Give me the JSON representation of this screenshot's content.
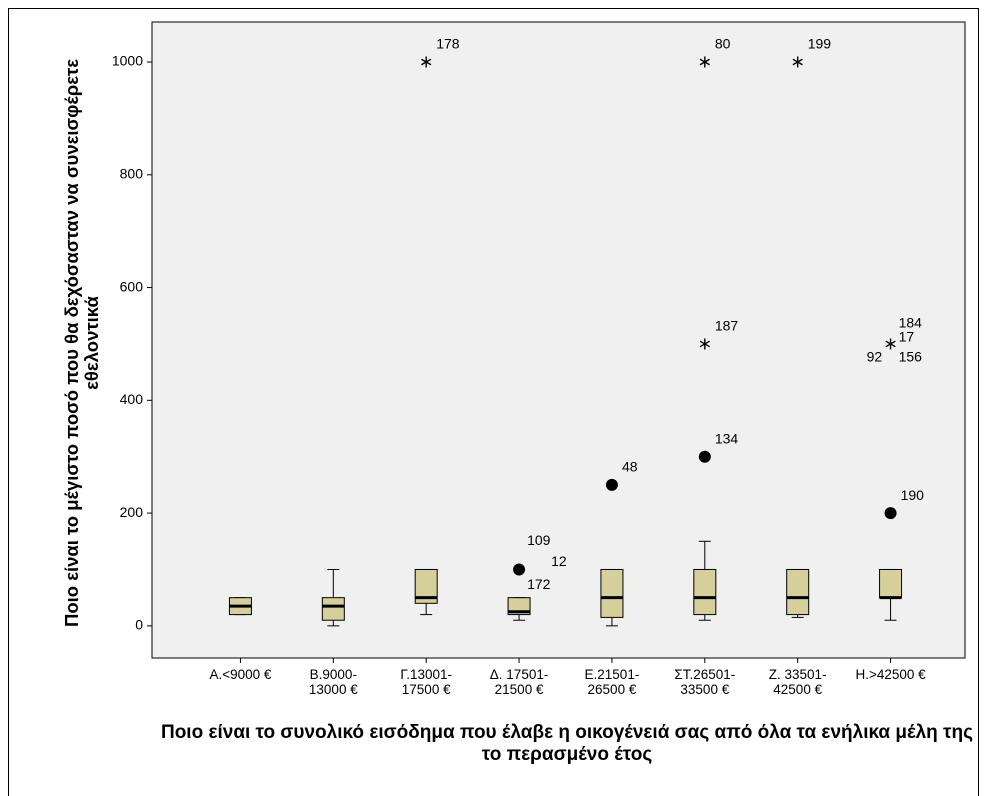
{
  "chart_data": {
    "type": "box",
    "x_label": "Ποιο είναι το συνολικό εισόδημα που έλαβε η οικογένειά σας από όλα τα ενήλικα μέλη της το περασμένο έτος",
    "y_label": "Ποιο είναι το μέγιστο ποσό που θα δεχόσασταν να συνεισφέρετε εθελοντικά",
    "categories": [
      "Α.<9000 €",
      "Β.9000-\n13000 €",
      "Γ.13001-\n17500 €",
      "Δ. 17501-\n21500 €",
      "Ε.21501-\n26500 €",
      "ΣΤ.26501-\n33500 €",
      "Ζ. 33501-\n42500 €",
      "Η.>42500 €"
    ],
    "color": "#d4cf9b",
    "background": "#f0f0f0",
    "ylim": [
      -57,
      1071
    ],
    "yticks": [
      0,
      200,
      400,
      600,
      800,
      1000
    ],
    "boxes": [
      {
        "min": 20,
        "q1": 20,
        "median": 35,
        "q3": 50,
        "max": 50,
        "outliers": []
      },
      {
        "min": 0,
        "q1": 10,
        "median": 35,
        "q3": 50,
        "max": 100,
        "outliers": []
      },
      {
        "min": 20,
        "q1": 40,
        "median": 50,
        "q3": 100,
        "max": 100,
        "outliers": [
          {
            "value": 1000,
            "marker": "star",
            "labels": [
              "178"
            ]
          }
        ]
      },
      {
        "min": 10,
        "q1": 20,
        "median": 25,
        "q3": 50,
        "max": 50,
        "outliers": [
          {
            "value": 100,
            "marker": "circle",
            "labels": [
              "109",
              "12",
              "172"
            ]
          }
        ]
      },
      {
        "min": 0,
        "q1": 15,
        "median": 50,
        "q3": 100,
        "max": 100,
        "outliers": [
          {
            "value": 250,
            "marker": "circle",
            "labels": [
              "48"
            ]
          }
        ]
      },
      {
        "min": 10,
        "q1": 20,
        "median": 50,
        "q3": 100,
        "max": 150,
        "outliers": [
          {
            "value": 300,
            "marker": "circle",
            "labels": [
              "134"
            ]
          },
          {
            "value": 500,
            "marker": "star",
            "labels": [
              "187"
            ]
          },
          {
            "value": 1000,
            "marker": "star",
            "labels": [
              "80"
            ]
          }
        ]
      },
      {
        "min": 15,
        "q1": 20,
        "median": 50,
        "q3": 100,
        "max": 100,
        "outliers": [
          {
            "value": 1000,
            "marker": "star",
            "labels": [
              "199"
            ]
          }
        ]
      },
      {
        "min": 10,
        "q1": 50,
        "median": 50,
        "q3": 100,
        "max": 100,
        "outliers": [
          {
            "value": 200,
            "marker": "circle",
            "labels": [
              "190"
            ]
          },
          {
            "value": 500,
            "marker": "star",
            "labels": [
              "184",
              "17",
              "92",
              "156"
            ]
          }
        ]
      }
    ]
  }
}
